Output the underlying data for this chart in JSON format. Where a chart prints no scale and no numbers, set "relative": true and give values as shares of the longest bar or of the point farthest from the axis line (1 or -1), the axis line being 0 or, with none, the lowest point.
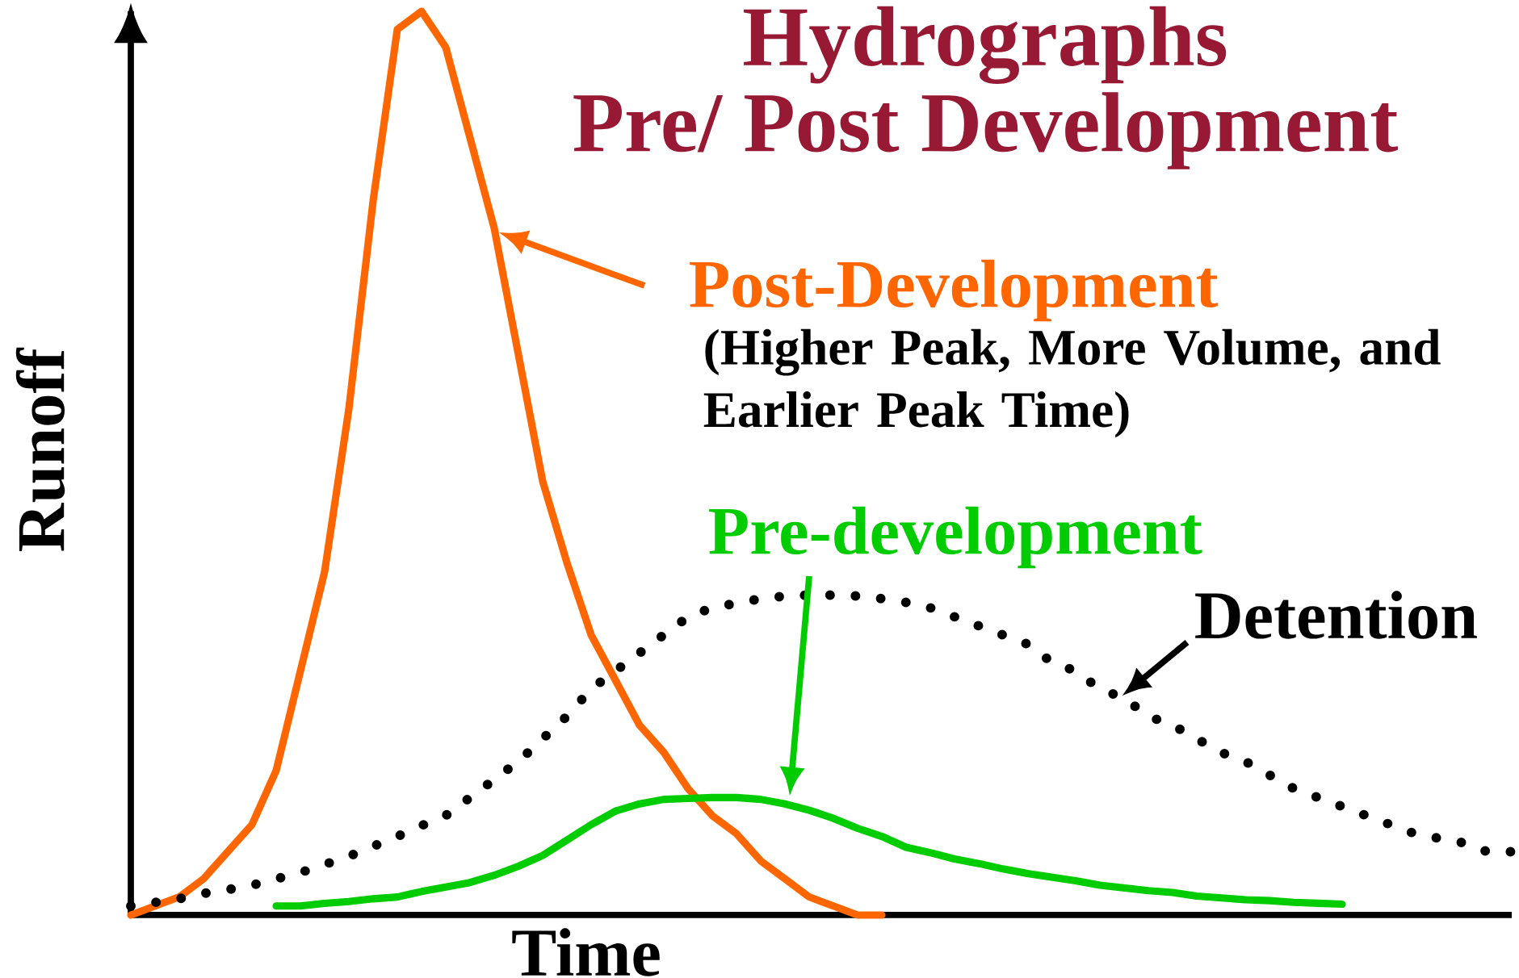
{
  "chart_data": {
    "type": "line",
    "relative": true,
    "legend": "right",
    "title": "Hydrographs",
    "subtitle": "Pre/ Post Development",
    "xlabel": "Time",
    "ylabel": "Runoff",
    "annotations": [
      "(Higher Peak, More Volume, and Earlier Peak Time)"
    ],
    "categories": [
      null,
      null,
      null,
      null,
      null,
      null,
      null,
      null,
      null,
      null,
      null,
      null,
      null,
      null,
      null,
      null,
      null,
      null,
      null,
      null,
      null,
      null,
      null,
      null,
      null,
      null,
      null,
      null,
      null,
      null,
      null,
      null,
      null,
      null,
      null,
      null,
      null,
      null,
      null,
      null,
      null,
      null,
      null,
      null,
      null,
      null,
      null,
      null,
      null,
      null,
      null,
      null,
      null,
      null,
      null,
      null,
      null,
      null
    ],
    "series": [
      {
        "name": "Post-Development",
        "color": "#ff6600",
        "values": [
          0,
          0.01,
          0.02,
          0.04,
          0.07,
          0.1,
          0.16,
          0.27,
          0.38,
          0.56,
          0.79,
          0.98,
          1,
          0.96,
          0.86,
          0.76,
          0.62,
          0.48,
          0.39,
          0.31,
          0.26,
          0.21,
          0.18,
          0.14,
          0.11,
          0.09,
          0.06,
          0.04,
          0.02,
          0.01,
          0,
          0,
          null,
          null,
          null,
          null,
          null,
          null,
          null,
          null,
          null,
          null,
          null,
          null,
          null,
          null,
          null,
          null,
          null,
          null,
          null,
          null,
          null,
          null,
          null,
          null,
          null,
          null
        ]
      },
      {
        "name": "Pre-development",
        "color": "#00cc00",
        "values": [
          null,
          null,
          null,
          null,
          null,
          null,
          0.01,
          0.01,
          0.013,
          0.015,
          0.018,
          0.02,
          0.026,
          0.031,
          0.036,
          0.044,
          0.054,
          0.066,
          0.083,
          0.1,
          0.115,
          0.123,
          0.128,
          0.129,
          0.13,
          0.13,
          0.128,
          0.123,
          0.116,
          0.107,
          0.096,
          0.087,
          0.075,
          0.069,
          0.062,
          0.057,
          0.051,
          0.046,
          0.042,
          0.038,
          0.033,
          0.03,
          0.027,
          0.025,
          0.021,
          0.019,
          0.017,
          0.016,
          0.014,
          0.013,
          0.012,
          null,
          null,
          null,
          null,
          null,
          null,
          null
        ]
      },
      {
        "name": "Detention",
        "color": "#000000",
        "line_style": "dotted",
        "values": [
          0.01,
          0.014,
          0.018,
          0.024,
          0.028,
          0.033,
          0.04,
          0.047,
          0.056,
          0.065,
          0.076,
          0.087,
          0.099,
          0.11,
          0.13,
          0.15,
          0.17,
          0.195,
          0.22,
          0.25,
          0.27,
          0.29,
          0.31,
          0.33,
          0.34,
          0.345,
          0.35,
          0.353,
          0.354,
          0.354,
          0.353,
          0.35,
          0.346,
          0.34,
          0.33,
          0.32,
          0.31,
          0.3,
          0.28,
          0.27,
          0.25,
          0.24,
          0.22,
          0.21,
          0.195,
          0.18,
          0.17,
          0.155,
          0.14,
          0.13,
          0.12,
          0.11,
          0.1,
          0.09,
          0.085,
          0.08,
          0.07,
          0.07
        ]
      }
    ]
  }
}
